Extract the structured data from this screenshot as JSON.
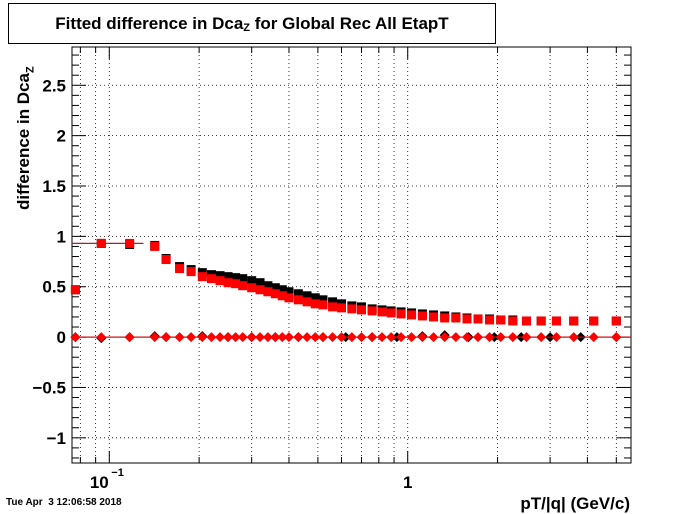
{
  "title": {
    "main": "Fitted difference in Dca",
    "sub": "Z",
    "rest": " for Global Rec All EtapT"
  },
  "timestamp": "Tue Apr  3 12:06:58 2018",
  "chart_data": {
    "type": "scatter",
    "xscale": "log",
    "xlim": [
      0.075,
      5.6
    ],
    "ylim": [
      -1.25,
      2.88
    ],
    "xlabel": "pT/|q| (GeV/c)",
    "ylabel_main": "difference in Dca",
    "ylabel_sub": "Z",
    "grid": true,
    "yticks": [
      -1,
      -0.5,
      0,
      0.5,
      1,
      1.5,
      2,
      2.5
    ],
    "ytick_labels": [
      "−1",
      "−0.5",
      "0",
      "0.5",
      "1",
      "1.5",
      "2",
      "2.5"
    ],
    "xtick_labels": [
      {
        "base": "10",
        "exp": "−1",
        "value": 0.1
      },
      {
        "base": "1",
        "exp": "",
        "value": 1
      }
    ],
    "colors": {
      "black": "#000000",
      "red": "#ff0000"
    },
    "series": [
      {
        "style": "black-squares",
        "points": [
          [
            0.077,
            0.47
          ],
          [
            0.094,
            0.93
          ],
          [
            0.117,
            0.92
          ],
          [
            0.142,
            0.91
          ],
          [
            0.155,
            0.78
          ],
          [
            0.172,
            0.7
          ],
          [
            0.188,
            0.67
          ],
          [
            0.205,
            0.64
          ],
          [
            0.22,
            0.62
          ],
          [
            0.235,
            0.61
          ],
          [
            0.25,
            0.6
          ],
          [
            0.265,
            0.59
          ],
          [
            0.28,
            0.58
          ],
          [
            0.3,
            0.56
          ],
          [
            0.32,
            0.54
          ],
          [
            0.34,
            0.51
          ],
          [
            0.36,
            0.49
          ],
          [
            0.38,
            0.47
          ],
          [
            0.4,
            0.45
          ],
          [
            0.43,
            0.43
          ],
          [
            0.46,
            0.41
          ],
          [
            0.49,
            0.39
          ],
          [
            0.52,
            0.37
          ],
          [
            0.56,
            0.35
          ],
          [
            0.6,
            0.33
          ],
          [
            0.65,
            0.31
          ],
          [
            0.7,
            0.3
          ],
          [
            0.76,
            0.28
          ],
          [
            0.82,
            0.27
          ],
          [
            0.88,
            0.26
          ],
          [
            0.95,
            0.25
          ],
          [
            1.03,
            0.24
          ],
          [
            1.12,
            0.23
          ],
          [
            1.22,
            0.22
          ],
          [
            1.33,
            0.21
          ],
          [
            1.45,
            0.2
          ],
          [
            1.58,
            0.19
          ],
          [
            1.72,
            0.18
          ],
          [
            1.88,
            0.18
          ],
          [
            2.05,
            0.17
          ],
          [
            2.25,
            0.17
          ],
          [
            2.5,
            0.16
          ],
          [
            2.8,
            0.16
          ],
          [
            3.15,
            0.16
          ],
          [
            3.6,
            0.16
          ],
          [
            4.2,
            0.16
          ],
          [
            5.0,
            0.16
          ]
        ]
      },
      {
        "style": "red-squares",
        "points": [
          [
            0.077,
            0.47
          ],
          [
            0.094,
            0.93
          ],
          [
            0.117,
            0.93
          ],
          [
            0.142,
            0.9
          ],
          [
            0.155,
            0.77
          ],
          [
            0.172,
            0.68
          ],
          [
            0.188,
            0.65
          ],
          [
            0.205,
            0.6
          ],
          [
            0.22,
            0.58
          ],
          [
            0.235,
            0.56
          ],
          [
            0.25,
            0.54
          ],
          [
            0.265,
            0.53
          ],
          [
            0.28,
            0.51
          ],
          [
            0.3,
            0.49
          ],
          [
            0.32,
            0.47
          ],
          [
            0.34,
            0.45
          ],
          [
            0.36,
            0.43
          ],
          [
            0.38,
            0.41
          ],
          [
            0.4,
            0.39
          ],
          [
            0.43,
            0.37
          ],
          [
            0.46,
            0.35
          ],
          [
            0.49,
            0.33
          ],
          [
            0.52,
            0.32
          ],
          [
            0.56,
            0.3
          ],
          [
            0.6,
            0.29
          ],
          [
            0.65,
            0.28
          ],
          [
            0.7,
            0.27
          ],
          [
            0.76,
            0.26
          ],
          [
            0.82,
            0.25
          ],
          [
            0.88,
            0.24
          ],
          [
            0.95,
            0.23
          ],
          [
            1.03,
            0.22
          ],
          [
            1.12,
            0.21
          ],
          [
            1.22,
            0.2
          ],
          [
            1.33,
            0.19
          ],
          [
            1.45,
            0.19
          ],
          [
            1.58,
            0.18
          ],
          [
            1.72,
            0.18
          ],
          [
            1.88,
            0.17
          ],
          [
            2.05,
            0.17
          ],
          [
            2.25,
            0.16
          ],
          [
            2.5,
            0.16
          ],
          [
            2.8,
            0.16
          ],
          [
            3.15,
            0.16
          ],
          [
            3.6,
            0.16
          ],
          [
            4.2,
            0.16
          ],
          [
            5.0,
            0.16
          ]
        ]
      },
      {
        "style": "black-diamonds",
        "points": [
          [
            0.077,
            0.0
          ],
          [
            0.094,
            -0.01
          ],
          [
            0.117,
            0.0
          ],
          [
            0.142,
            0.01
          ],
          [
            0.155,
            0.0
          ],
          [
            0.205,
            0.01
          ],
          [
            0.25,
            0.0
          ],
          [
            0.3,
            0.0
          ],
          [
            0.36,
            0.0
          ],
          [
            0.43,
            0.0
          ],
          [
            0.52,
            0.0
          ],
          [
            0.62,
            0.0
          ],
          [
            0.76,
            0.0
          ],
          [
            0.92,
            0.0
          ],
          [
            1.12,
            0.01
          ],
          [
            1.33,
            0.02
          ],
          [
            1.6,
            0.0
          ],
          [
            1.95,
            0.0
          ],
          [
            2.4,
            0.0
          ],
          [
            3.0,
            0.0
          ],
          [
            3.8,
            0.0
          ],
          [
            5.0,
            0.0
          ]
        ]
      },
      {
        "style": "red-diamonds",
        "points": [
          [
            0.077,
            0.0
          ],
          [
            0.094,
            0.0
          ],
          [
            0.117,
            0.0
          ],
          [
            0.142,
            0.0
          ],
          [
            0.155,
            0.0
          ],
          [
            0.172,
            0.0
          ],
          [
            0.188,
            0.0
          ],
          [
            0.205,
            0.0
          ],
          [
            0.22,
            0.0
          ],
          [
            0.235,
            0.0
          ],
          [
            0.25,
            0.0
          ],
          [
            0.265,
            0.0
          ],
          [
            0.28,
            0.0
          ],
          [
            0.3,
            0.0
          ],
          [
            0.32,
            0.0
          ],
          [
            0.34,
            0.0
          ],
          [
            0.36,
            0.0
          ],
          [
            0.38,
            0.0
          ],
          [
            0.4,
            0.0
          ],
          [
            0.43,
            0.0
          ],
          [
            0.46,
            0.0
          ],
          [
            0.49,
            0.0
          ],
          [
            0.52,
            0.0
          ],
          [
            0.56,
            0.0
          ],
          [
            0.6,
            0.0
          ],
          [
            0.65,
            0.0
          ],
          [
            0.7,
            0.0
          ],
          [
            0.76,
            0.0
          ],
          [
            0.82,
            0.0
          ],
          [
            0.88,
            0.0
          ],
          [
            0.95,
            0.0
          ],
          [
            1.03,
            0.0
          ],
          [
            1.12,
            0.0
          ],
          [
            1.22,
            0.0
          ],
          [
            1.33,
            0.0
          ],
          [
            1.45,
            0.0
          ],
          [
            1.58,
            0.0
          ],
          [
            1.72,
            0.0
          ],
          [
            1.88,
            0.0
          ],
          [
            2.05,
            0.0
          ],
          [
            2.25,
            0.0
          ],
          [
            2.5,
            0.0
          ],
          [
            2.8,
            0.0
          ],
          [
            3.15,
            0.0
          ],
          [
            3.6,
            0.0
          ],
          [
            4.2,
            0.0
          ],
          [
            5.0,
            0.0
          ]
        ]
      }
    ]
  }
}
